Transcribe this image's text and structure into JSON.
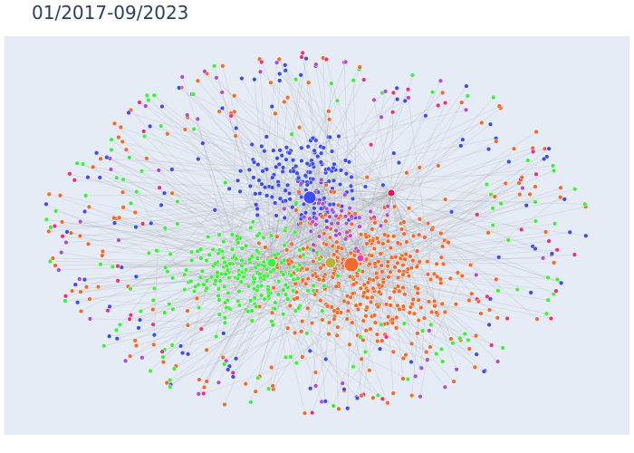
{
  "title": "01/2017-09/2023"
}
